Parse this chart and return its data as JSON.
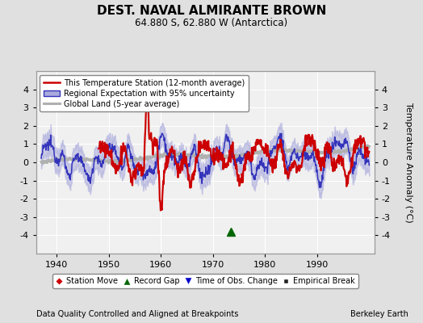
{
  "title": "DEST. NAVAL ALMIRANTE BROWN",
  "subtitle": "64.880 S, 62.880 W (Antarctica)",
  "ylabel": "Temperature Anomaly (°C)",
  "xlabel_note": "Data Quality Controlled and Aligned at Breakpoints",
  "credit": "Berkeley Earth",
  "xlim": [
    1936,
    2001
  ],
  "ylim": [
    -5,
    5
  ],
  "yticks": [
    -4,
    -3,
    -2,
    -1,
    0,
    1,
    2,
    3,
    4
  ],
  "xticks": [
    1940,
    1950,
    1960,
    1970,
    1980,
    1990
  ],
  "bg_color": "#e0e0e0",
  "plot_bg_color": "#f0f0f0",
  "grid_color": "#ffffff",
  "band_color": "#aaaadd",
  "band_alpha": 0.55,
  "title_fontsize": 11,
  "subtitle_fontsize": 8.5,
  "tick_fontsize": 8,
  "label_fontsize": 8,
  "record_gap_x": 1973.5,
  "record_gap_y": -3.8
}
